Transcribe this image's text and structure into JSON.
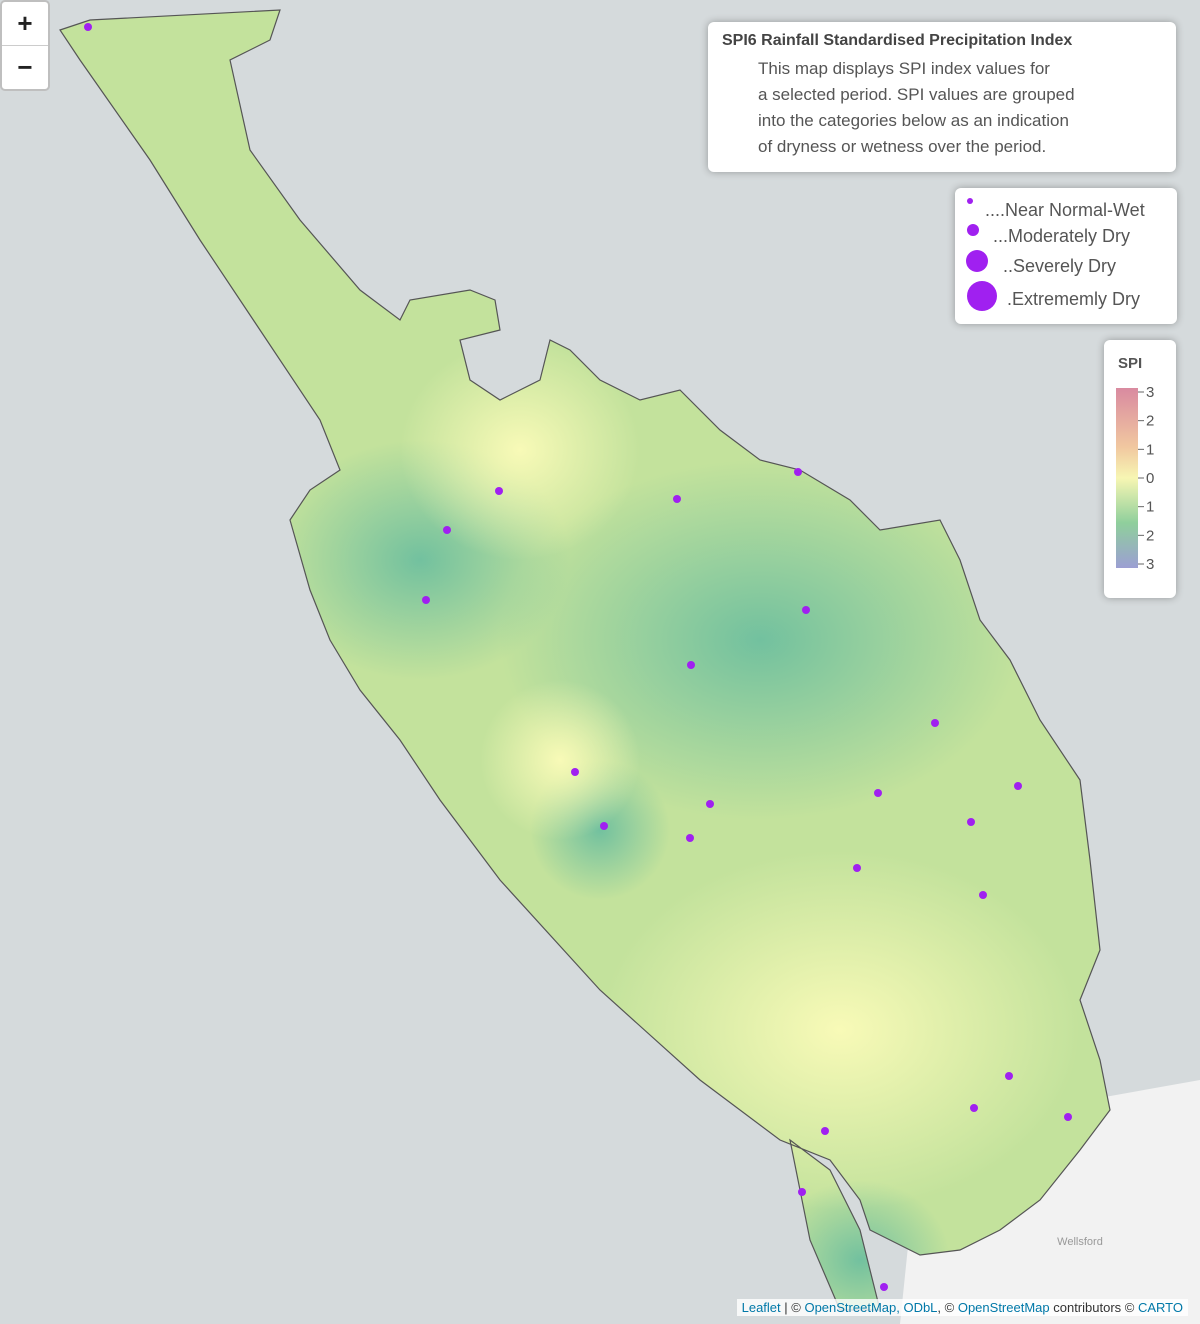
{
  "zoom": {
    "in": "+",
    "out": "−"
  },
  "info": {
    "title": "SPI6 Rainfall Standardised Precipitation Index",
    "description": [
      "This map displays SPI index values for",
      "a selected period. SPI values are grouped",
      "into the categories below as an indication",
      "of dryness or wetness over the period."
    ]
  },
  "size_legend": {
    "items": [
      "....Near Normal-Wet",
      "...Moderately Dry",
      "..Severely Dry",
      ".Extrememly Dry"
    ]
  },
  "color_legend": {
    "title": "SPI",
    "ticks": [
      "3",
      "2",
      "1",
      "0",
      "1",
      "2",
      "3"
    ]
  },
  "map_labels": [
    "Wellsford"
  ],
  "attribution": [
    "Leaflet",
    " | © ",
    "OpenStreetMap, ODbL",
    ", © ",
    "OpenStreetMap",
    " contributors © ",
    "CARTO"
  ]
}
